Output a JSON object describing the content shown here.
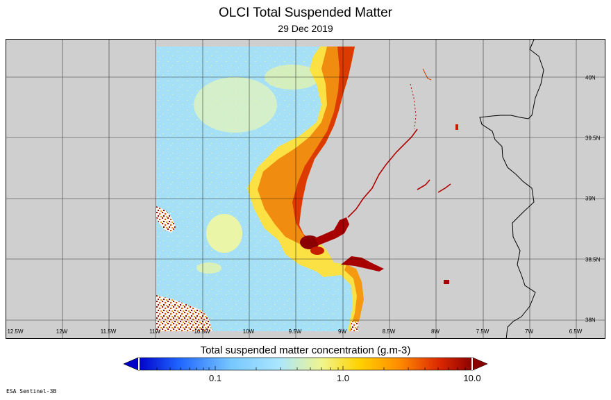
{
  "title": "OLCI Total Suspended Matter",
  "subtitle": "29 Dec 2019",
  "longitude_labels": [
    "12.5W",
    "12W",
    "11.5W",
    "11W",
    "10.5W",
    "10W",
    "9.5W",
    "9W",
    "8.5W",
    "8W",
    "7.5W",
    "7W",
    "6.5W"
  ],
  "latitude_labels": [
    "40N",
    "39.5N",
    "39N",
    "38.5N",
    "38N"
  ],
  "colorbar": {
    "title": "Total suspended matter concentration (g.m-3)",
    "ticks": [
      "0.1",
      "1.0",
      "10.0"
    ],
    "scale": "log",
    "colors": [
      "#0000c8",
      "#1e64ff",
      "#78c8ff",
      "#aae6ff",
      "#f0f58c",
      "#ffd200",
      "#ff8c00",
      "#dc2800",
      "#8c0000"
    ]
  },
  "colors": {
    "land": "#cfcfcf",
    "open_water": "#a6e0f6",
    "coastal_high": "#e05a00",
    "estuary_max": "#8b0000",
    "grid": "#000000"
  },
  "source": "ESA Sentinel-3B"
}
